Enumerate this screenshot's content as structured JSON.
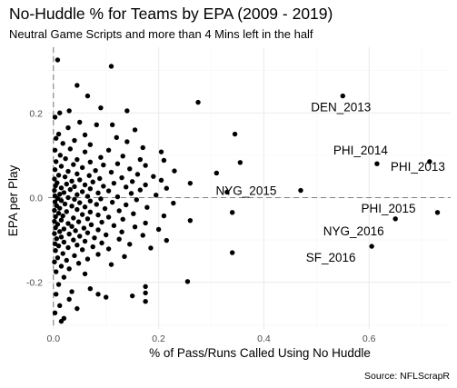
{
  "chart_data": {
    "type": "scatter",
    "title": "No-Huddle % for Teams by EPA (2009 - 2019)",
    "subtitle": "Neutral Game Scripts and more than 4 Mins left in the half",
    "xlabel": "% of Pass/Runs Called Using No Huddle",
    "ylabel": "EPA per Play",
    "caption": "Source: NFLScrapR",
    "xlim": [
      -0.01,
      0.755
    ],
    "ylim": [
      -0.31,
      0.355
    ],
    "x_ticks": [
      {
        "value": 0.0,
        "label": "0.0"
      },
      {
        "value": 0.2,
        "label": "0.2"
      },
      {
        "value": 0.4,
        "label": "0.4"
      },
      {
        "value": 0.6,
        "label": "0.6"
      }
    ],
    "y_ticks": [
      {
        "value": -0.2,
        "label": "-0.2"
      },
      {
        "value": 0.0,
        "label": "0.0"
      },
      {
        "value": 0.2,
        "label": "0.2"
      }
    ],
    "grid": true,
    "reference_lines": {
      "x": 0.0,
      "y": 0.0
    },
    "colors": {
      "point": "#000000",
      "grid_major": "#ebebeb",
      "grid_minor": "#f5f5f5",
      "reference": "#808080",
      "tick_text": "#4d4d4d"
    },
    "labeled_points": [
      {
        "label": "DEN_2013",
        "x": 0.55,
        "y": 0.24
      },
      {
        "label": "PHI_2014",
        "x": 0.615,
        "y": 0.08
      },
      {
        "label": "PHI_2013",
        "x": 0.715,
        "y": 0.085
      },
      {
        "label": "NYG_2015",
        "x": 0.47,
        "y": 0.017
      },
      {
        "label": "PHI_2015",
        "x": 0.73,
        "y": -0.035
      },
      {
        "label": "NYG_2016",
        "x": 0.65,
        "y": -0.05
      },
      {
        "label": "SF_2016",
        "x": 0.605,
        "y": -0.115
      }
    ],
    "points": [
      [
        0.008,
        0.325
      ],
      [
        0.11,
        0.31
      ],
      [
        0.045,
        0.265
      ],
      [
        0.065,
        0.24
      ],
      [
        0.275,
        0.225
      ],
      [
        0.09,
        0.212
      ],
      [
        0.03,
        0.205
      ],
      [
        0.012,
        0.2
      ],
      [
        0.14,
        0.205
      ],
      [
        0.003,
        0.19
      ],
      [
        0.05,
        0.178
      ],
      [
        0.082,
        0.172
      ],
      [
        0.112,
        0.172
      ],
      [
        0.028,
        0.165
      ],
      [
        0.155,
        0.16
      ],
      [
        0.345,
        0.15
      ],
      [
        0.01,
        0.15
      ],
      [
        0.06,
        0.148
      ],
      [
        0.12,
        0.142
      ],
      [
        0.005,
        0.14
      ],
      [
        0.04,
        0.135
      ],
      [
        0.14,
        0.132
      ],
      [
        0.018,
        0.128
      ],
      [
        0.07,
        0.125
      ],
      [
        0.17,
        0.118
      ],
      [
        0.032,
        0.115
      ],
      [
        0.003,
        0.112
      ],
      [
        0.105,
        0.112
      ],
      [
        0.06,
        0.108
      ],
      [
        0.205,
        0.108
      ],
      [
        0.013,
        0.1
      ],
      [
        0.132,
        0.098
      ],
      [
        0.09,
        0.095
      ],
      [
        0.023,
        0.092
      ],
      [
        0.045,
        0.09
      ],
      [
        0.165,
        0.09
      ],
      [
        0.21,
        0.088
      ],
      [
        0.005,
        0.085
      ],
      [
        0.07,
        0.084
      ],
      [
        0.355,
        0.083
      ],
      [
        0.122,
        0.08
      ],
      [
        0.038,
        0.078
      ],
      [
        0.095,
        0.077
      ],
      [
        0.175,
        0.076
      ],
      [
        0.015,
        0.074
      ],
      [
        0.055,
        0.071
      ],
      [
        0.145,
        0.068
      ],
      [
        0.003,
        0.066
      ],
      [
        0.08,
        0.064
      ],
      [
        0.23,
        0.063
      ],
      [
        0.028,
        0.062
      ],
      [
        0.11,
        0.06
      ],
      [
        0.31,
        0.058
      ],
      [
        0.045,
        0.056
      ],
      [
        0.16,
        0.055
      ],
      [
        0.01,
        0.053
      ],
      [
        0.068,
        0.052
      ],
      [
        0.19,
        0.05
      ],
      [
        0.022,
        0.049
      ],
      [
        0.13,
        0.047
      ],
      [
        0.088,
        0.045
      ],
      [
        0.002,
        0.044
      ],
      [
        0.05,
        0.042
      ],
      [
        0.205,
        0.041
      ],
      [
        0.035,
        0.039
      ],
      [
        0.15,
        0.038
      ],
      [
        0.075,
        0.037
      ],
      [
        0.007,
        0.035
      ],
      [
        0.115,
        0.034
      ],
      [
        0.26,
        0.034
      ],
      [
        0.025,
        0.032
      ],
      [
        0.06,
        0.03
      ],
      [
        0.175,
        0.03
      ],
      [
        0.004,
        0.028
      ],
      [
        0.095,
        0.027
      ],
      [
        0.04,
        0.026
      ],
      [
        0.138,
        0.025
      ],
      [
        0.015,
        0.023
      ],
      [
        0.215,
        0.022
      ],
      [
        0.07,
        0.021
      ],
      [
        0.032,
        0.019
      ],
      [
        0.165,
        0.018
      ],
      [
        0.002,
        0.017
      ],
      [
        0.105,
        0.016
      ],
      [
        0.055,
        0.014
      ],
      [
        0.33,
        0.013
      ],
      [
        0.02,
        0.012
      ],
      [
        0.085,
        0.011
      ],
      [
        0.148,
        0.01
      ],
      [
        0.012,
        0.008
      ],
      [
        0.045,
        0.007
      ],
      [
        0.195,
        0.006
      ],
      [
        0.003,
        0.004
      ],
      [
        0.065,
        0.003
      ],
      [
        0.122,
        0.002
      ],
      [
        0.028,
        0.0
      ],
      [
        0.008,
        -0.002
      ],
      [
        0.09,
        -0.003
      ],
      [
        0.04,
        -0.004
      ],
      [
        0.158,
        -0.005
      ],
      [
        0.015,
        -0.007
      ],
      [
        0.07,
        -0.008
      ],
      [
        0.003,
        -0.01
      ],
      [
        0.112,
        -0.011
      ],
      [
        0.05,
        -0.012
      ],
      [
        0.228,
        -0.013
      ],
      [
        0.022,
        -0.015
      ],
      [
        0.082,
        -0.016
      ],
      [
        0.138,
        -0.017
      ],
      [
        0.006,
        -0.019
      ],
      [
        0.035,
        -0.02
      ],
      [
        0.06,
        -0.022
      ],
      [
        0.178,
        -0.023
      ],
      [
        0.012,
        -0.025
      ],
      [
        0.098,
        -0.026
      ],
      [
        0.045,
        -0.028
      ],
      [
        0.002,
        -0.03
      ],
      [
        0.125,
        -0.031
      ],
      [
        0.025,
        -0.033
      ],
      [
        0.07,
        -0.034
      ],
      [
        0.34,
        -0.035
      ],
      [
        0.01,
        -0.037
      ],
      [
        0.152,
        -0.038
      ],
      [
        0.055,
        -0.04
      ],
      [
        0.085,
        -0.041
      ],
      [
        0.018,
        -0.043
      ],
      [
        0.21,
        -0.043
      ],
      [
        0.004,
        -0.045
      ],
      [
        0.105,
        -0.046
      ],
      [
        0.038,
        -0.048
      ],
      [
        0.065,
        -0.05
      ],
      [
        0.132,
        -0.051
      ],
      [
        0.015,
        -0.053
      ],
      [
        0.26,
        -0.054
      ],
      [
        0.002,
        -0.056
      ],
      [
        0.048,
        -0.057
      ],
      [
        0.092,
        -0.058
      ],
      [
        0.175,
        -0.06
      ],
      [
        0.028,
        -0.061
      ],
      [
        0.008,
        -0.063
      ],
      [
        0.072,
        -0.064
      ],
      [
        0.115,
        -0.066
      ],
      [
        0.035,
        -0.068
      ],
      [
        0.155,
        -0.069
      ],
      [
        0.004,
        -0.071
      ],
      [
        0.058,
        -0.072
      ],
      [
        0.02,
        -0.074
      ],
      [
        0.2,
        -0.075
      ],
      [
        0.085,
        -0.076
      ],
      [
        0.042,
        -0.078
      ],
      [
        0.012,
        -0.08
      ],
      [
        0.13,
        -0.081
      ],
      [
        0.065,
        -0.083
      ],
      [
        0.002,
        -0.085
      ],
      [
        0.03,
        -0.086
      ],
      [
        0.1,
        -0.088
      ],
      [
        0.17,
        -0.089
      ],
      [
        0.05,
        -0.091
      ],
      [
        0.015,
        -0.093
      ],
      [
        0.078,
        -0.095
      ],
      [
        0.006,
        -0.097
      ],
      [
        0.125,
        -0.098
      ],
      [
        0.038,
        -0.1
      ],
      [
        0.215,
        -0.101
      ],
      [
        0.06,
        -0.103
      ],
      [
        0.02,
        -0.105
      ],
      [
        0.092,
        -0.107
      ],
      [
        0.003,
        -0.109
      ],
      [
        0.145,
        -0.11
      ],
      [
        0.045,
        -0.112
      ],
      [
        0.01,
        -0.114
      ],
      [
        0.075,
        -0.116
      ],
      [
        0.028,
        -0.118
      ],
      [
        0.185,
        -0.119
      ],
      [
        0.105,
        -0.121
      ],
      [
        0.055,
        -0.123
      ],
      [
        0.004,
        -0.125
      ],
      [
        0.34,
        -0.13
      ],
      [
        0.018,
        -0.132
      ],
      [
        0.085,
        -0.134
      ],
      [
        0.04,
        -0.137
      ],
      [
        0.135,
        -0.139
      ],
      [
        0.008,
        -0.142
      ],
      [
        0.065,
        -0.145
      ],
      [
        0.025,
        -0.148
      ],
      [
        0.002,
        -0.152
      ],
      [
        0.048,
        -0.155
      ],
      [
        0.11,
        -0.158
      ],
      [
        0.015,
        -0.162
      ],
      [
        0.03,
        -0.168
      ],
      [
        0.005,
        -0.175
      ],
      [
        0.06,
        -0.18
      ],
      [
        0.02,
        -0.188
      ],
      [
        0.255,
        -0.198
      ],
      [
        0.01,
        -0.205
      ],
      [
        0.175,
        -0.21
      ],
      [
        0.07,
        -0.215
      ],
      [
        0.035,
        -0.222
      ],
      [
        0.175,
        -0.225
      ],
      [
        0.005,
        -0.228
      ],
      [
        0.15,
        -0.232
      ],
      [
        0.1,
        -0.235
      ],
      [
        0.085,
        -0.228
      ],
      [
        0.03,
        -0.24
      ],
      [
        0.175,
        -0.245
      ],
      [
        0.012,
        -0.255
      ],
      [
        0.045,
        -0.262
      ],
      [
        0.003,
        -0.272
      ],
      [
        0.02,
        -0.285
      ],
      [
        0.015,
        -0.292
      ]
    ]
  }
}
